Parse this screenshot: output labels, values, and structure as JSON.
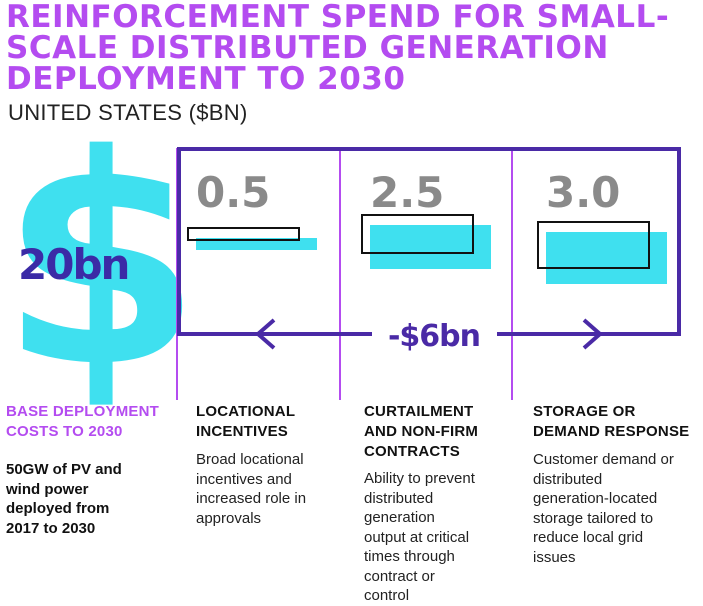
{
  "title_lines": [
    "REINFORCEMENT SPEND FOR SMALL-",
    "SCALE DISTRIBUTED GENERATION",
    "DEPLOYMENT TO 2030"
  ],
  "subtitle": "UNITED STATES ($BN)",
  "colors": {
    "purple": "#b44cf0",
    "indigo": "#4a2aa6",
    "cyan": "#3fe0ef",
    "grey": "#8a8a8a",
    "outline": "#111111"
  },
  "base": {
    "symbol": "$",
    "value_label": "20bn",
    "heading_lines": [
      "BASE DEPLOYMENT",
      "COSTS TO 2030"
    ],
    "description_lines": [
      "50GW of PV and",
      "wind power",
      "deployed from",
      "2017 to 2030"
    ]
  },
  "total": {
    "label": "-$6bn",
    "icon_left": "arrow-left-icon",
    "icon_right": "arrow-right-icon"
  },
  "chart_data": {
    "type": "bar",
    "title": "Reinforcement spend for small-scale distributed generation deployment to 2030",
    "subtitle": "United States ($bn)",
    "categories": [
      "Locational incentives",
      "Curtailment and non-firm contracts",
      "Storage or demand response"
    ],
    "values": [
      0.5,
      2.5,
      3.0
    ],
    "value_labels": [
      "0.5",
      "2.5",
      "3.0"
    ],
    "base_cost_bn": 20,
    "total_saving_bn": -6,
    "unit": "$bn"
  },
  "columns": [
    {
      "heading_lines": [
        "LOCATIONAL",
        "INCENTIVES"
      ],
      "description_lines": [
        "Broad locational",
        "incentives and",
        "increased role in",
        "approvals"
      ]
    },
    {
      "heading_lines": [
        "CURTAILMENT",
        "AND NON-FIRM",
        "CONTRACTS"
      ],
      "description_lines": [
        "Ability to prevent",
        "distributed",
        "generation",
        "output at critical",
        "times through",
        "contract or",
        "control"
      ]
    },
    {
      "heading_lines": [
        "STORAGE OR",
        "DEMAND RESPONSE"
      ],
      "description_lines": [
        "Customer demand or",
        "distributed",
        "generation-located",
        "storage tailored to",
        "reduce local grid",
        "issues"
      ]
    }
  ]
}
